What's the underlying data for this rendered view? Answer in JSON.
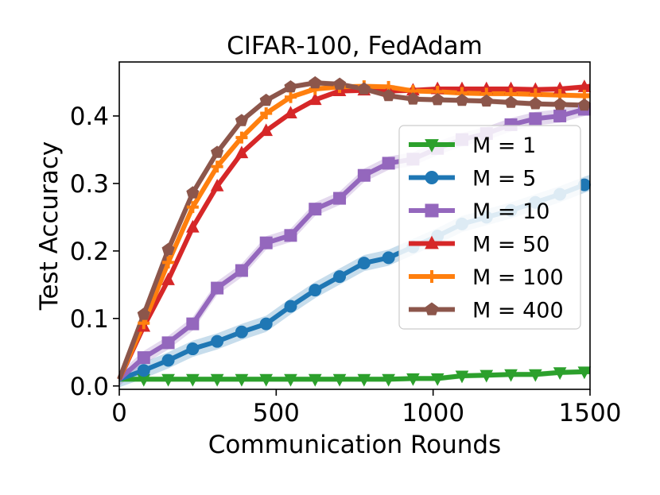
{
  "chart_data": {
    "type": "line",
    "title": "CIFAR-100, FedAdam",
    "xlabel": "Communication Rounds",
    "ylabel": "Test Accuracy",
    "xlim": [
      0,
      1500
    ],
    "ylim": [
      -0.005,
      0.48
    ],
    "xticks": [
      0,
      500,
      1000,
      1500
    ],
    "xtick_labels": [
      "0",
      "500",
      "1000",
      "1500"
    ],
    "yticks": [
      0.0,
      0.1,
      0.2,
      0.3,
      0.4
    ],
    "ytick_labels": [
      "0.0",
      "0.1",
      "0.2",
      "0.3",
      "0.4"
    ],
    "grid": false,
    "legend_position": "center-right",
    "series": [
      {
        "name": "M = 1",
        "color": "#2ca02c",
        "marker": "triangle-down",
        "x": [
          0,
          78,
          156,
          234,
          312,
          390,
          468,
          546,
          624,
          702,
          780,
          858,
          936,
          1014,
          1092,
          1170,
          1248,
          1326,
          1404,
          1482,
          1500
        ],
        "y": [
          0.01,
          0.01,
          0.01,
          0.01,
          0.01,
          0.01,
          0.01,
          0.01,
          0.01,
          0.01,
          0.01,
          0.01,
          0.011,
          0.011,
          0.015,
          0.016,
          0.017,
          0.017,
          0.02,
          0.021,
          0.021
        ],
        "band": 0.004
      },
      {
        "name": "M = 5",
        "color": "#1f77b4",
        "marker": "circle",
        "x": [
          0,
          78,
          156,
          234,
          312,
          390,
          468,
          546,
          624,
          702,
          780,
          858,
          936,
          1014,
          1092,
          1170,
          1248,
          1326,
          1404,
          1482,
          1500
        ],
        "y": [
          0.01,
          0.023,
          0.038,
          0.055,
          0.066,
          0.08,
          0.092,
          0.118,
          0.142,
          0.162,
          0.182,
          0.19,
          0.206,
          0.222,
          0.24,
          0.25,
          0.26,
          0.272,
          0.284,
          0.298,
          0.301
        ],
        "band": 0.012
      },
      {
        "name": "M = 10",
        "color": "#9467bd",
        "marker": "square",
        "x": [
          0,
          78,
          156,
          234,
          312,
          390,
          468,
          546,
          624,
          702,
          780,
          858,
          936,
          1014,
          1092,
          1170,
          1248,
          1326,
          1404,
          1482,
          1500
        ],
        "y": [
          0.01,
          0.042,
          0.064,
          0.092,
          0.145,
          0.171,
          0.212,
          0.223,
          0.262,
          0.278,
          0.312,
          0.33,
          0.336,
          0.352,
          0.365,
          0.374,
          0.387,
          0.396,
          0.4,
          0.41,
          0.412
        ],
        "band": 0.01
      },
      {
        "name": "M = 50",
        "color": "#d62728",
        "marker": "triangle-up",
        "x": [
          0,
          78,
          156,
          234,
          312,
          390,
          468,
          546,
          624,
          702,
          780,
          858,
          936,
          1014,
          1092,
          1170,
          1248,
          1326,
          1404,
          1482,
          1500
        ],
        "y": [
          0.01,
          0.088,
          0.157,
          0.235,
          0.296,
          0.345,
          0.378,
          0.404,
          0.424,
          0.437,
          0.438,
          0.437,
          0.438,
          0.44,
          0.44,
          0.44,
          0.44,
          0.439,
          0.44,
          0.443,
          0.444
        ],
        "band": 0.004
      },
      {
        "name": "M = 100",
        "color": "#ff7f0e",
        "marker": "plus",
        "x": [
          0,
          78,
          156,
          234,
          312,
          390,
          468,
          546,
          624,
          702,
          780,
          858,
          936,
          1014,
          1092,
          1170,
          1248,
          1326,
          1404,
          1482,
          1500
        ],
        "y": [
          0.01,
          0.093,
          0.183,
          0.265,
          0.325,
          0.368,
          0.404,
          0.428,
          0.44,
          0.443,
          0.444,
          0.443,
          0.437,
          0.436,
          0.434,
          0.433,
          0.433,
          0.432,
          0.431,
          0.43,
          0.43
        ],
        "band": 0.004
      },
      {
        "name": "M = 400",
        "color": "#8c564b",
        "marker": "pentagon",
        "x": [
          0,
          78,
          156,
          234,
          312,
          390,
          468,
          546,
          624,
          702,
          780,
          858,
          936,
          1014,
          1092,
          1170,
          1248,
          1326,
          1404,
          1482,
          1500
        ],
        "y": [
          0.01,
          0.106,
          0.202,
          0.286,
          0.346,
          0.393,
          0.423,
          0.443,
          0.449,
          0.447,
          0.44,
          0.43,
          0.425,
          0.424,
          0.423,
          0.422,
          0.42,
          0.418,
          0.417,
          0.416,
          0.415
        ],
        "band": 0.004
      }
    ]
  }
}
